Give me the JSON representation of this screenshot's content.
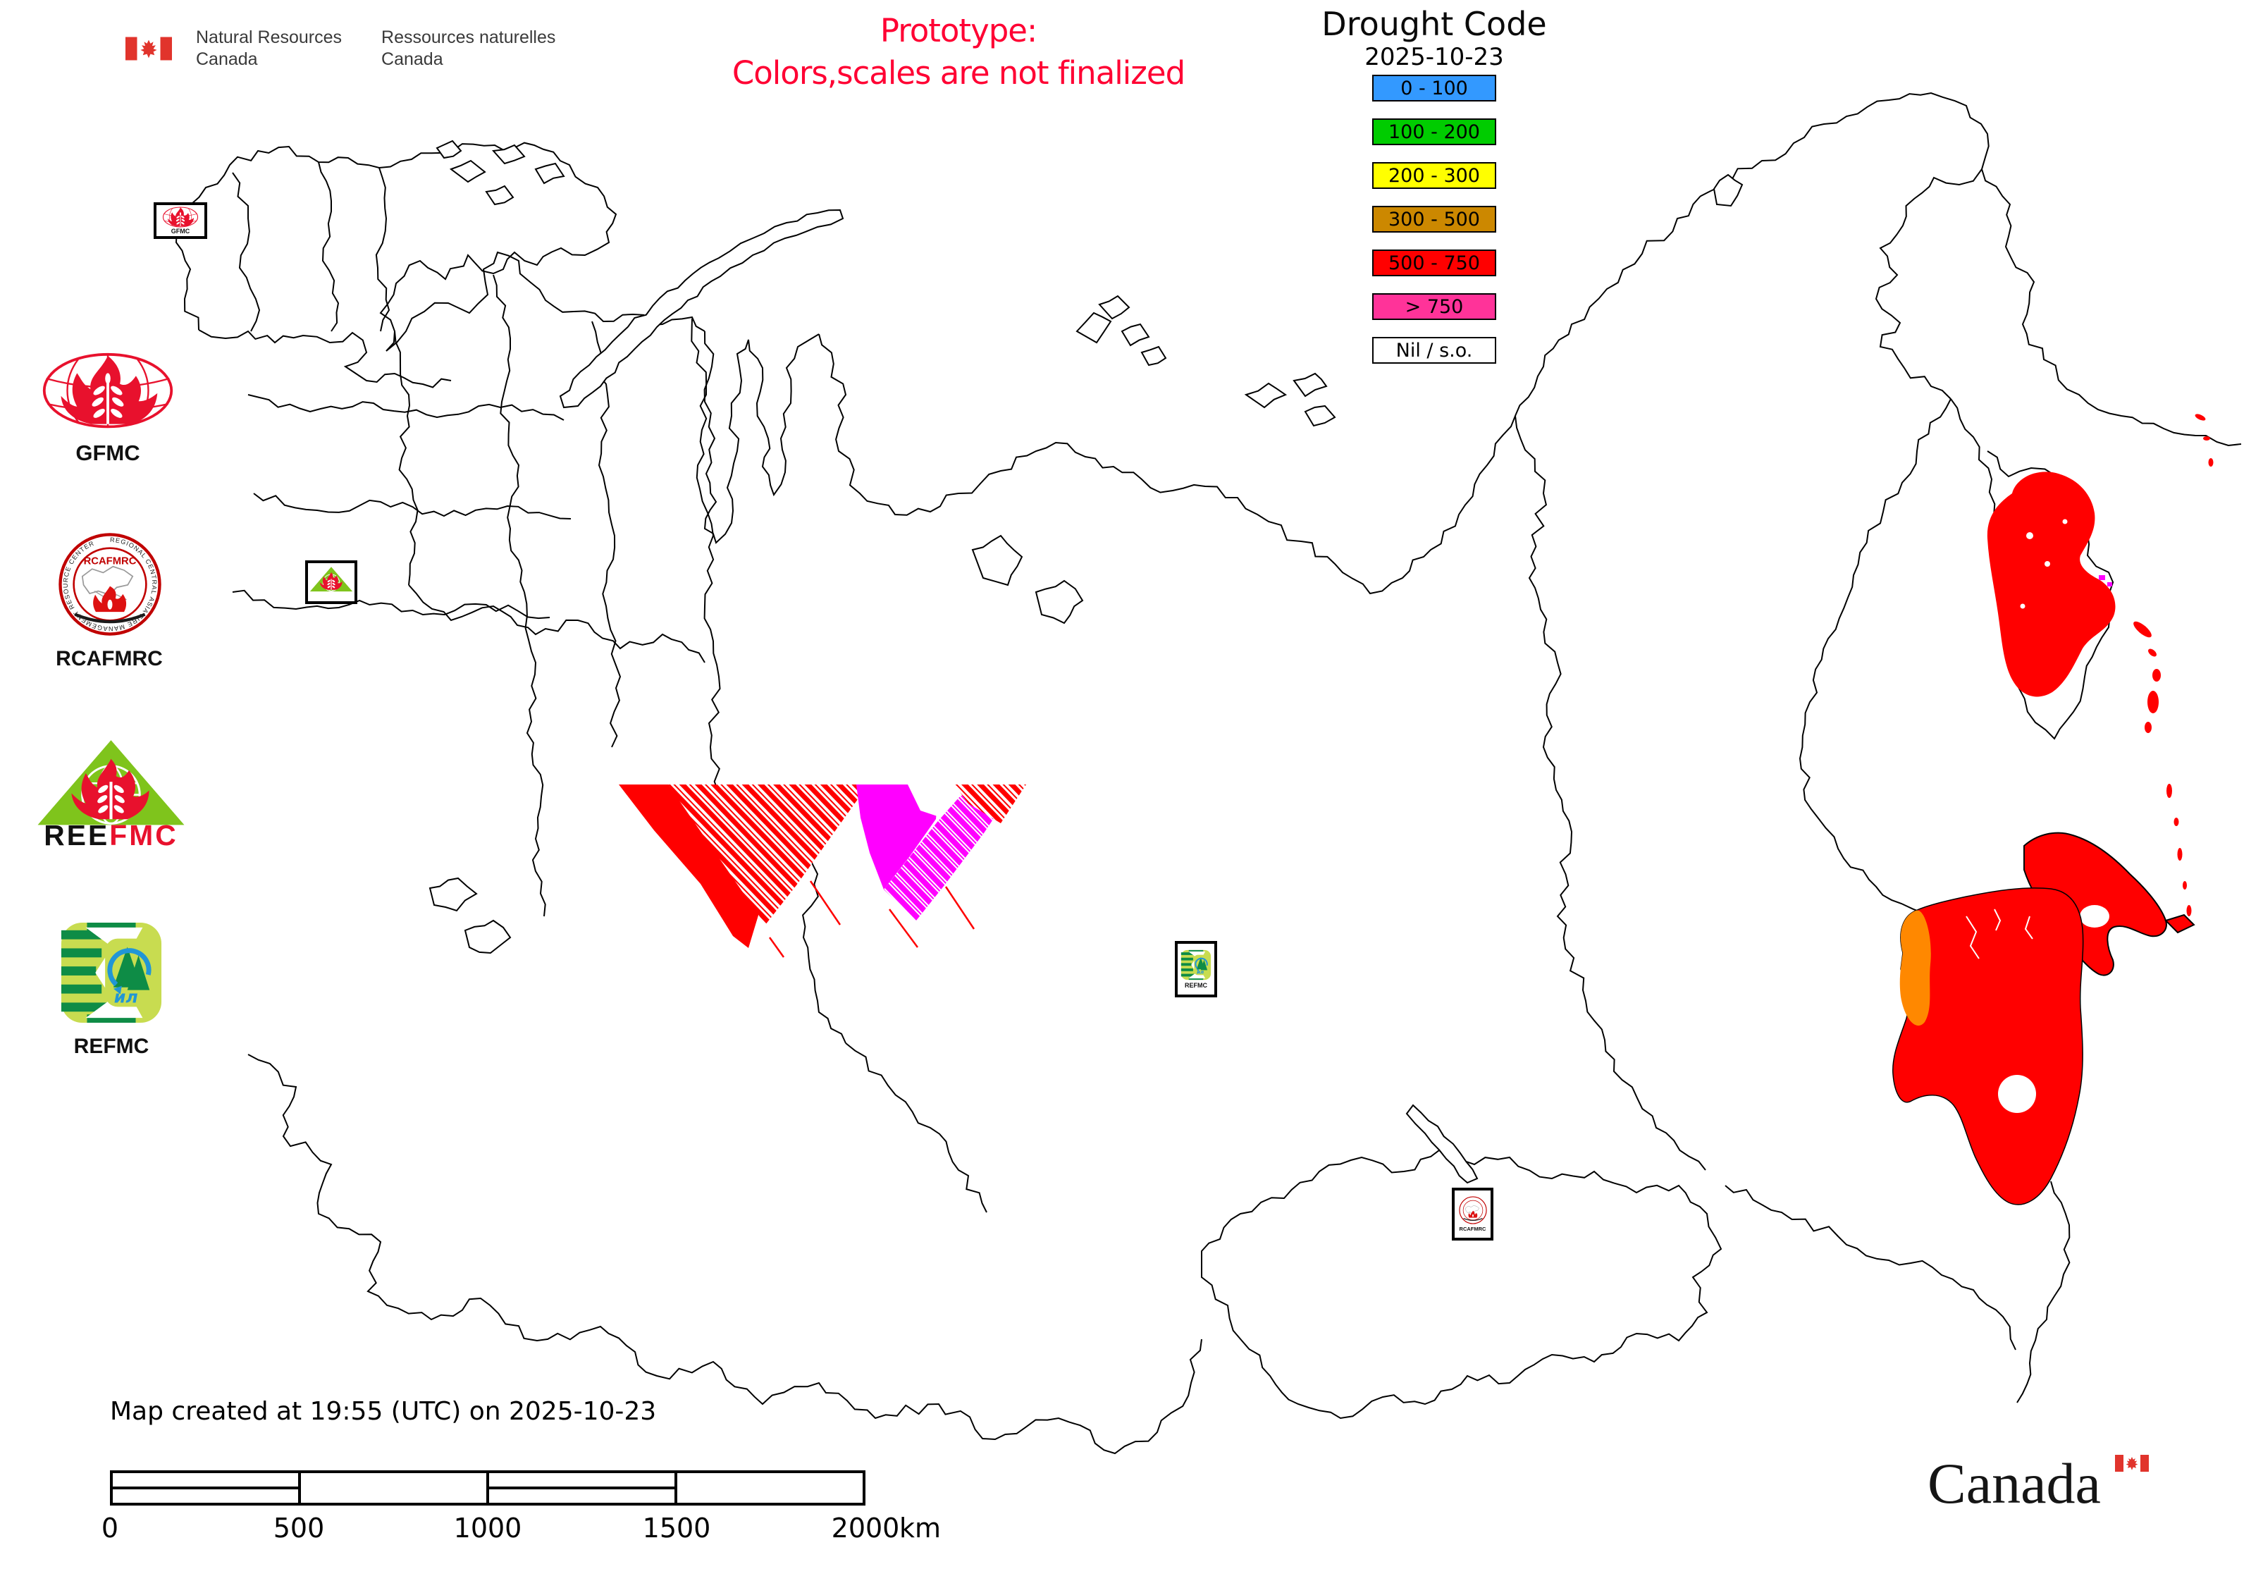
{
  "branding": {
    "nrcan": {
      "en_line1": "Natural Resources",
      "en_line2": "Canada",
      "fr_line1": "Ressources naturelles",
      "fr_line2": "Canada"
    },
    "canada_wordmark": "Canada",
    "flag_red": "#e1342c"
  },
  "notice": {
    "line1": "Prototype:",
    "line2": "Colors,scales are not finalized",
    "color": "#ff0033"
  },
  "legend": {
    "title": "Drought Code",
    "date": "2025-10-23",
    "items": [
      {
        "label": "0 - 100",
        "color": "#3399ff"
      },
      {
        "label": "100 - 200",
        "color": "#00cc00"
      },
      {
        "label": "200 - 300",
        "color": "#ffff00"
      },
      {
        "label": "300 - 500",
        "color": "#cc8800"
      },
      {
        "label": "500 - 750",
        "color": "#ff0000"
      },
      {
        "label": "> 750",
        "color": "#ff3399"
      },
      {
        "label": "Nil / s.o.",
        "color": "#ffffff"
      }
    ]
  },
  "partners": [
    {
      "id": "gfmc",
      "label": "GFMC"
    },
    {
      "id": "rcafmrc",
      "label": "RCAFMRC",
      "ring_text": "REGIONAL CENTRAL ASIA FIRE MANAGEMENT RESOURCE CENTER",
      "inner_text": "RCAFMRC"
    },
    {
      "id": "reefmc",
      "label_black": "REE",
      "label_red": "FMC"
    },
    {
      "id": "refmc",
      "label": "REFMC",
      "inner_text": "ил"
    }
  ],
  "footer": {
    "created": "Map created at 19:55 (UTC) on 2025-10-23",
    "scalebar": {
      "ticks": [
        "0",
        "500",
        "1000",
        "1500",
        "2000"
      ],
      "unit": "km"
    }
  },
  "map": {
    "colors": {
      "drought_red": "#ff0000",
      "drought_magenta": "#ff00ff",
      "drought_orange": "#ff8800",
      "coastline": "#000000"
    }
  }
}
